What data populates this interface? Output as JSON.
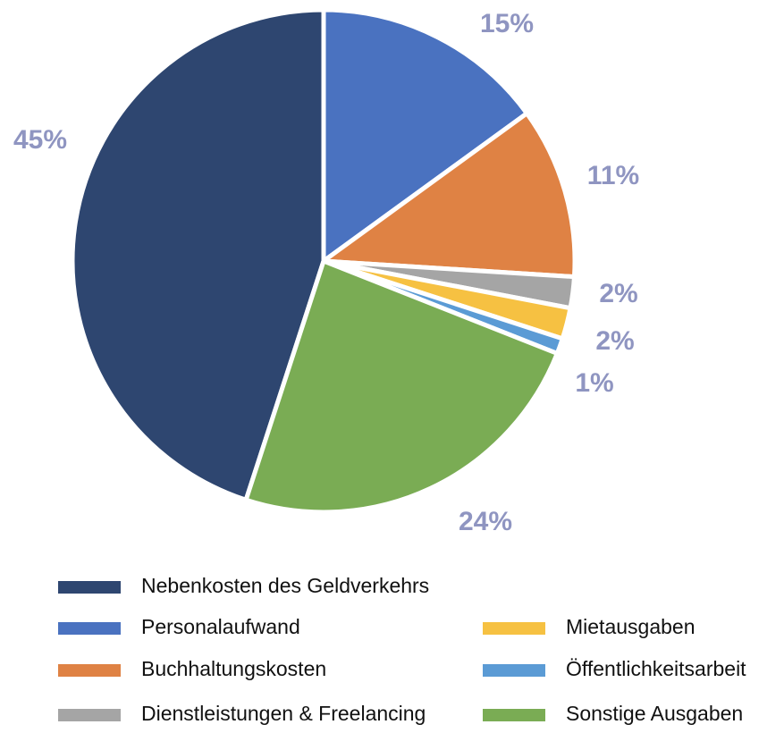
{
  "chart_data": {
    "type": "pie",
    "categories": [
      "Nebenkosten des Geldverkehrs",
      "Personalaufwand",
      "Buchhaltungskosten",
      "Dienstleistungen & Freelancing",
      "Mietausgaben",
      "Öffentlichkeitsarbeit",
      "Sonstige Ausgaben"
    ],
    "values": [
      45,
      15,
      11,
      2,
      2,
      1,
      24
    ],
    "value_labels": [
      "45%",
      "15%",
      "11%",
      "2%",
      "2%",
      "1%",
      "24%"
    ],
    "colors": [
      "#2e4670",
      "#4a72c0",
      "#df8244",
      "#a5a5a5",
      "#f6c142",
      "#5b9bd5",
      "#7aac54"
    ],
    "legend": "bottom"
  }
}
